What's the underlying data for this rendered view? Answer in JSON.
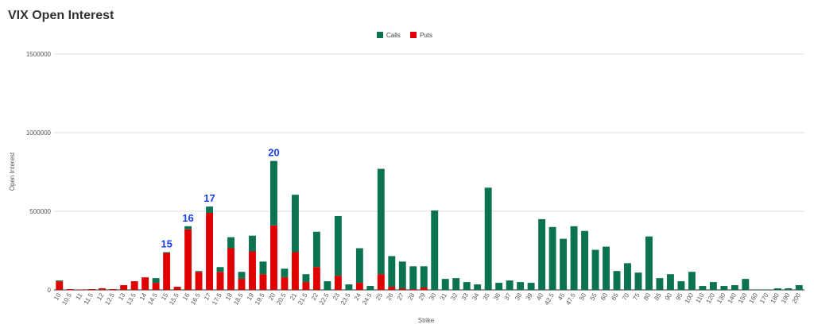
{
  "chart_data": {
    "type": "bar",
    "stacked": true,
    "title": "VIX Open Interest",
    "xlabel": "Strike",
    "ylabel": "Open Interest",
    "ylim": [
      0,
      1500000
    ],
    "yticks": [
      0,
      500000,
      1000000,
      1500000
    ],
    "grid": true,
    "legend_position": "top-center",
    "categories": [
      "10",
      "10.5",
      "11",
      "11.5",
      "12",
      "12.5",
      "13",
      "13.5",
      "14",
      "14.5",
      "15",
      "15.5",
      "16",
      "16.5",
      "17",
      "17.5",
      "18",
      "18.5",
      "19",
      "19.5",
      "20",
      "20.5",
      "21",
      "21.5",
      "22",
      "22.5",
      "23",
      "23.5",
      "24",
      "24.5",
      "25",
      "26",
      "27",
      "28",
      "29",
      "30",
      "31",
      "32",
      "33",
      "34",
      "35",
      "36",
      "37",
      "38",
      "39",
      "40",
      "42.5",
      "45",
      "47.5",
      "50",
      "55",
      "60",
      "65",
      "70",
      "75",
      "80",
      "85",
      "90",
      "95",
      "100",
      "110",
      "120",
      "130",
      "140",
      "150",
      "160",
      "170",
      "180",
      "190",
      "200"
    ],
    "series": [
      {
        "name": "Puts",
        "color": "#e00000",
        "values": [
          55000,
          5000,
          3000,
          5000,
          10000,
          5000,
          30000,
          55000,
          80000,
          45000,
          235000,
          20000,
          385000,
          115000,
          490000,
          115000,
          265000,
          70000,
          245000,
          100000,
          410000,
          80000,
          240000,
          50000,
          145000,
          0,
          90000,
          0,
          45000,
          0,
          100000,
          20000,
          10000,
          5000,
          15000,
          0,
          0,
          0,
          0,
          0,
          0,
          0,
          0,
          0,
          0,
          0,
          0,
          0,
          0,
          0,
          0,
          0,
          0,
          0,
          0,
          0,
          0,
          0,
          0,
          0,
          0,
          0,
          0,
          0,
          0,
          0,
          0,
          0,
          0,
          0
        ]
      },
      {
        "name": "Calls",
        "color": "#0b7350",
        "values": [
          5000,
          0,
          0,
          0,
          0,
          0,
          0,
          0,
          0,
          30000,
          5000,
          0,
          20000,
          5000,
          40000,
          30000,
          70000,
          45000,
          100000,
          80000,
          410000,
          55000,
          365000,
          50000,
          225000,
          55000,
          380000,
          35000,
          220000,
          25000,
          670000,
          195000,
          170000,
          145000,
          135000,
          505000,
          70000,
          75000,
          50000,
          35000,
          650000,
          45000,
          60000,
          50000,
          45000,
          450000,
          400000,
          325000,
          405000,
          375000,
          255000,
          275000,
          120000,
          170000,
          110000,
          340000,
          75000,
          100000,
          55000,
          115000,
          25000,
          50000,
          25000,
          30000,
          70000,
          3000,
          3000,
          10000,
          10000,
          30000
        ]
      }
    ],
    "annotations": [
      {
        "category": "15",
        "text": "15",
        "color": "#1a3ee8"
      },
      {
        "category": "16",
        "text": "16",
        "color": "#1a3ee8"
      },
      {
        "category": "17",
        "text": "17",
        "color": "#1a3ee8"
      },
      {
        "category": "20",
        "text": "20",
        "color": "#1a3ee8"
      }
    ]
  }
}
